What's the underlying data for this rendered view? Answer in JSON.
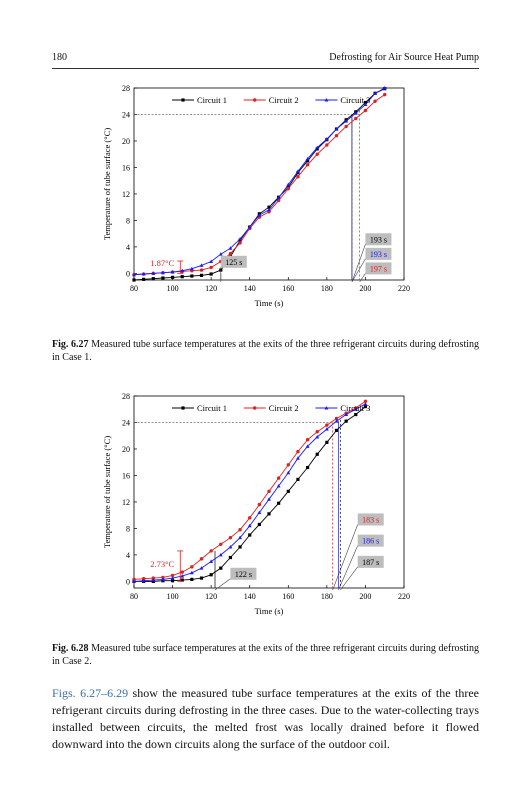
{
  "header": {
    "page_number": "180",
    "running_title": "Defrosting for Air Source Heat Pump"
  },
  "figures": [
    {
      "caption_label": "Fig. 6.27",
      "caption_text": "Measured tube surface temperatures at the exits of the three refrigerant circuits during defrosting in Case 1.",
      "chart_data": {
        "type": "line",
        "xlabel": "Time (s)",
        "ylabel": "Temperature of tube surface (°C)",
        "xlim": [
          80,
          220
        ],
        "ylim": [
          -1,
          28
        ],
        "xticks": [
          80,
          100,
          120,
          140,
          160,
          180,
          200,
          220
        ],
        "yticks": [
          0,
          4,
          8,
          12,
          16,
          20,
          24,
          28
        ],
        "legend_position": "top",
        "series": [
          {
            "name": "Circuit 1",
            "color": "#000000",
            "marker": "square",
            "x": [
              80,
              85,
              90,
              95,
              100,
              105,
              110,
              115,
              120,
              125,
              130,
              135,
              140,
              145,
              150,
              155,
              160,
              165,
              170,
              175,
              180,
              185,
              190,
              195,
              200,
              205,
              210
            ],
            "y": [
              -1.0,
              -0.9,
              -0.8,
              -0.7,
              -0.6,
              -0.5,
              -0.4,
              -0.3,
              -0.1,
              0.5,
              2.5,
              5.0,
              7.0,
              9.0,
              10.0,
              11.5,
              13.0,
              15.2,
              17.0,
              18.8,
              20.2,
              21.8,
              23.2,
              24.4,
              25.8,
              27.2,
              27.9
            ]
          },
          {
            "name": "Circuit 2",
            "color": "#e02020",
            "marker": "circle",
            "x": [
              80,
              85,
              90,
              95,
              100,
              105,
              110,
              115,
              120,
              125,
              130,
              135,
              140,
              145,
              150,
              155,
              160,
              165,
              170,
              175,
              180,
              185,
              190,
              195,
              200,
              205,
              210
            ],
            "y": [
              -0.2,
              -0.1,
              0.0,
              0.1,
              0.2,
              0.3,
              0.4,
              0.5,
              0.9,
              1.8,
              3.0,
              4.6,
              6.8,
              8.5,
              9.3,
              11.0,
              12.8,
              14.6,
              16.4,
              18.0,
              19.4,
              20.8,
              22.2,
              23.4,
              24.6,
              26.0,
              27.0
            ]
          },
          {
            "name": "Circuit 3",
            "color": "#1a1aff",
            "marker": "triangle",
            "x": [
              80,
              85,
              90,
              95,
              100,
              105,
              110,
              115,
              120,
              125,
              130,
              135,
              140,
              145,
              150,
              155,
              160,
              165,
              170,
              175,
              180,
              185,
              190,
              195,
              200,
              205,
              210
            ],
            "y": [
              -0.2,
              -0.1,
              0.0,
              0.1,
              0.2,
              0.4,
              0.7,
              1.2,
              1.8,
              2.9,
              3.8,
              5.2,
              7.0,
              8.8,
              9.6,
              11.4,
              13.4,
              15.4,
              17.3,
              19.0,
              20.3,
              21.8,
              23.0,
              24.2,
              25.5,
              27.2,
              28.0
            ]
          }
        ],
        "annotations": [
          {
            "text": "1.87°C",
            "color": "#e02020",
            "x": 103,
            "y": 1.6
          },
          {
            "text": "125 s",
            "x": 125,
            "y": 0.6
          },
          {
            "text": "193 s",
            "color": "#000000",
            "x": 193,
            "y": 4.4
          },
          {
            "text": "193 s",
            "color": "#1a1aff",
            "x": 193,
            "y": 2.2
          },
          {
            "text": "197 s",
            "color": "#e02020",
            "x": 197,
            "y": 0.0
          }
        ]
      }
    },
    {
      "caption_label": "Fig. 6.28",
      "caption_text": "Measured tube surface temperatures at the exits of the three refrigerant circuits during defrosting in Case 2.",
      "chart_data": {
        "type": "line",
        "xlabel": "Time (s)",
        "ylabel": "Temperature of tube surface (°C)",
        "xlim": [
          80,
          220
        ],
        "ylim": [
          -1,
          28
        ],
        "xticks": [
          80,
          100,
          120,
          140,
          160,
          180,
          200,
          220
        ],
        "yticks": [
          0,
          4,
          8,
          12,
          16,
          20,
          24,
          28
        ],
        "legend_position": "top",
        "series": [
          {
            "name": "Circuit 1",
            "color": "#000000",
            "marker": "square",
            "x": [
              80,
              85,
              90,
              95,
              100,
              105,
              110,
              115,
              120,
              125,
              130,
              135,
              140,
              145,
              150,
              155,
              160,
              165,
              170,
              175,
              180,
              185,
              190,
              195,
              200
            ],
            "y": [
              0.0,
              0.0,
              0.0,
              0.1,
              0.1,
              0.2,
              0.3,
              0.5,
              1.0,
              2.0,
              3.6,
              5.2,
              7.0,
              8.6,
              10.2,
              11.8,
              13.6,
              15.4,
              17.2,
              19.2,
              21.0,
              22.8,
              24.2,
              25.2,
              26.4
            ]
          },
          {
            "name": "Circuit 2",
            "color": "#e02020",
            "marker": "circle",
            "x": [
              80,
              85,
              90,
              95,
              100,
              105,
              110,
              115,
              120,
              125,
              130,
              135,
              140,
              145,
              150,
              155,
              160,
              165,
              170,
              175,
              180,
              185,
              190,
              195,
              200
            ],
            "y": [
              0.3,
              0.4,
              0.5,
              0.6,
              0.9,
              1.4,
              2.2,
              3.4,
              4.6,
              5.6,
              6.6,
              7.8,
              9.6,
              11.6,
              13.6,
              15.6,
              17.6,
              19.6,
              21.4,
              22.6,
              23.6,
              24.6,
              25.4,
              26.2,
              27.2
            ]
          },
          {
            "name": "Circuit 3",
            "color": "#1a1aff",
            "marker": "triangle",
            "x": [
              80,
              85,
              90,
              95,
              100,
              105,
              110,
              115,
              120,
              125,
              130,
              135,
              140,
              145,
              150,
              155,
              160,
              165,
              170,
              175,
              180,
              185,
              190,
              195,
              200
            ],
            "y": [
              0.0,
              0.1,
              0.2,
              0.3,
              0.5,
              0.8,
              1.3,
              2.0,
              3.0,
              4.0,
              5.2,
              6.6,
              8.4,
              10.4,
              12.4,
              14.4,
              16.4,
              18.6,
              20.4,
              21.8,
              23.0,
              24.2,
              25.2,
              26.0,
              26.8
            ]
          }
        ],
        "annotations": [
          {
            "text": "2.73°C",
            "color": "#e02020",
            "x": 104,
            "y": 2.6
          },
          {
            "text": "122 s",
            "x": 122,
            "y": 0.6
          },
          {
            "text": "183 s",
            "color": "#e02020",
            "x": 183,
            "y": 8.6
          },
          {
            "text": "186 s",
            "color": "#1a1aff",
            "x": 186,
            "y": 5.6
          },
          {
            "text": "187 s",
            "color": "#000000",
            "x": 187,
            "y": 2.6
          }
        ]
      }
    }
  ],
  "body": {
    "ref_text": "Figs. 6.27–6.29",
    "text": " show the measured tube surface temperatures at the exits of the three refrigerant circuits during defrosting in the three cases. Due to the water-collecting trays installed between circuits, the melted frost was locally drained before it flowed downward into the down circuits along the surface of the outdoor coil."
  }
}
